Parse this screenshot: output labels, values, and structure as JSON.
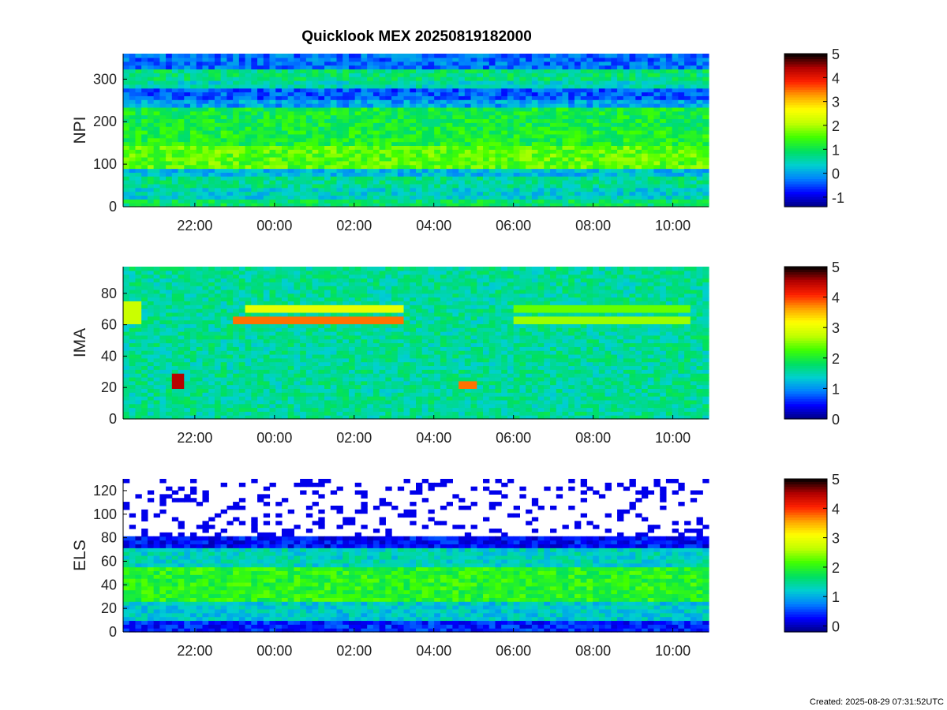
{
  "figure": {
    "title": "Quicklook MEX 20250819182000",
    "footer": "Created: 2025-08-29 07:31:52UTC"
  },
  "colormap": [
    "#000080",
    "#0000ff",
    "#0080ff",
    "#00d0d0",
    "#00e060",
    "#40ff00",
    "#c0ff00",
    "#ffff00",
    "#ffa000",
    "#ff2000",
    "#b00000",
    "#000000"
  ],
  "chart_data": [
    {
      "type": "heatmap",
      "name": "NPI",
      "ylabel": "NPI",
      "xlabel": "",
      "x_ticks": [
        "22:00",
        "00:00",
        "02:00",
        "04:00",
        "06:00",
        "08:00",
        "10:00"
      ],
      "x_tick_hours": [
        22,
        24,
        26,
        28,
        30,
        32,
        34
      ],
      "xlim_hours": [
        20.2,
        34.9
      ],
      "y_ticks": [
        0,
        100,
        200,
        300
      ],
      "ylim": [
        0,
        360
      ],
      "colorbar_ticks": [
        -1,
        0,
        1,
        2,
        3,
        4,
        5
      ],
      "colorbar_lim": [
        -1.4,
        5
      ],
      "bands": [
        {
          "y": [
            0,
            20
          ],
          "level": 0.9
        },
        {
          "y": [
            20,
            45
          ],
          "level": 0.4
        },
        {
          "y": [
            45,
            70
          ],
          "level": 0.7
        },
        {
          "y": [
            70,
            90
          ],
          "level": 0.2
        },
        {
          "y": [
            90,
            145
          ],
          "level": 1.6
        },
        {
          "y": [
            145,
            180
          ],
          "level": 1.2
        },
        {
          "y": [
            180,
            230
          ],
          "level": 1.1
        },
        {
          "y": [
            230,
            255
          ],
          "level": 0.0
        },
        {
          "y": [
            255,
            280
          ],
          "level": -0.4
        },
        {
          "y": [
            280,
            300
          ],
          "level": 0.5
        },
        {
          "y": [
            300,
            325
          ],
          "level": 0.8
        },
        {
          "y": [
            325,
            360
          ],
          "level": -0.3
        }
      ],
      "gaps": []
    },
    {
      "type": "heatmap",
      "name": "IMA",
      "ylabel": "IMA",
      "xlabel": "",
      "x_ticks": [
        "22:00",
        "00:00",
        "02:00",
        "04:00",
        "06:00",
        "08:00",
        "10:00"
      ],
      "x_tick_hours": [
        22,
        24,
        26,
        28,
        30,
        32,
        34
      ],
      "xlim_hours": [
        20.2,
        34.9
      ],
      "y_ticks": [
        0,
        20,
        40,
        60,
        80
      ],
      "ylim": [
        0,
        97
      ],
      "colorbar_ticks": [
        0,
        1,
        2,
        3,
        4,
        5
      ],
      "colorbar_lim": [
        0,
        5
      ],
      "background_level": 1.6,
      "features": [
        {
          "kind": "line",
          "x": [
            23.0,
            27.3
          ],
          "y": 63,
          "level": 3.8
        },
        {
          "kind": "line",
          "x": [
            23.3,
            27.3
          ],
          "y": 70,
          "level": 3.0
        },
        {
          "kind": "line",
          "x": [
            30.0,
            34.5
          ],
          "y": 64,
          "level": 2.6
        },
        {
          "kind": "line",
          "x": [
            30.0,
            34.5
          ],
          "y": 71,
          "level": 2.4
        },
        {
          "kind": "blob",
          "x": [
            21.5,
            21.8
          ],
          "y": [
            19,
            30
          ],
          "level": 4.5
        },
        {
          "kind": "line",
          "x": [
            28.6,
            29.1
          ],
          "y": 21,
          "level": 3.8
        },
        {
          "kind": "blob",
          "x": [
            20.2,
            20.6
          ],
          "y": [
            60,
            75
          ],
          "level": 2.8
        }
      ],
      "gaps": [
        [
          30.7,
          30.8
        ]
      ]
    },
    {
      "type": "heatmap",
      "name": "ELS",
      "ylabel": "ELS",
      "xlabel": "",
      "x_ticks": [
        "22:00",
        "00:00",
        "02:00",
        "04:00",
        "06:00",
        "08:00",
        "10:00"
      ],
      "x_tick_hours": [
        22,
        24,
        26,
        28,
        30,
        32,
        34
      ],
      "xlim_hours": [
        20.2,
        34.9
      ],
      "y_ticks": [
        0,
        20,
        40,
        60,
        80,
        100,
        120
      ],
      "ylim": [
        0,
        130
      ],
      "colorbar_ticks": [
        0,
        1,
        2,
        3,
        4,
        5
      ],
      "colorbar_lim": [
        -0.2,
        5
      ],
      "profile": [
        {
          "y": [
            0,
            10
          ],
          "level": 0.4
        },
        {
          "y": [
            10,
            25
          ],
          "level": 1.2
        },
        {
          "y": [
            25,
            55
          ],
          "level": 2.0
        },
        {
          "y": [
            55,
            70
          ],
          "level": 1.3
        },
        {
          "y": [
            70,
            82
          ],
          "level": 0.3
        },
        {
          "y": [
            82,
            130
          ],
          "level": -1
        }
      ],
      "gaps": []
    }
  ]
}
